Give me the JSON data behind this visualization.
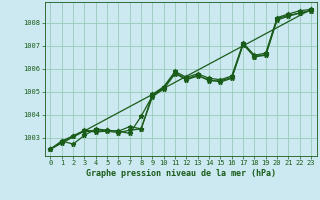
{
  "title": "Graphe pression niveau de la mer (hPa)",
  "background_color": "#cce8f0",
  "grid_color": "#99ccbb",
  "line_color": "#1a5c1a",
  "xlim": [
    -0.5,
    23.5
  ],
  "ylim": [
    1002.2,
    1008.9
  ],
  "xticks": [
    0,
    1,
    2,
    3,
    4,
    5,
    6,
    7,
    8,
    9,
    10,
    11,
    12,
    13,
    14,
    15,
    16,
    17,
    18,
    19,
    20,
    21,
    22,
    23
  ],
  "yticks": [
    1003,
    1004,
    1005,
    1006,
    1007,
    1008
  ],
  "series_main_x": [
    0,
    1,
    2,
    3,
    4,
    5,
    6,
    7,
    8,
    9,
    10,
    11,
    12,
    13,
    14,
    15,
    16,
    17,
    18,
    19,
    20,
    21,
    22,
    23
  ],
  "series_main_y": [
    1002.5,
    1002.85,
    1002.72,
    1003.1,
    1003.38,
    1003.32,
    1003.28,
    1003.18,
    1003.93,
    1004.82,
    1005.18,
    1005.82,
    1005.55,
    1005.72,
    1005.47,
    1005.47,
    1005.62,
    1007.08,
    1006.52,
    1006.62,
    1008.18,
    1008.32,
    1008.42,
    1008.52
  ],
  "series2_x": [
    0,
    1,
    2,
    3,
    4,
    5,
    6,
    7,
    8,
    9,
    10,
    11,
    12,
    13,
    14,
    15,
    16,
    17,
    18,
    19,
    20,
    21,
    22,
    23
  ],
  "series2_y": [
    1002.5,
    1002.85,
    1003.08,
    1003.32,
    1003.28,
    1003.32,
    1003.28,
    1003.48,
    1003.38,
    1004.88,
    1005.22,
    1005.88,
    1005.62,
    1005.78,
    1005.58,
    1005.52,
    1005.68,
    1007.12,
    1006.58,
    1006.68,
    1008.22,
    1008.38,
    1008.52,
    1008.58
  ],
  "straight_line_x": [
    0,
    23
  ],
  "straight_line_y": [
    1002.5,
    1008.58
  ],
  "series3_x": [
    0,
    1,
    2,
    3,
    4,
    5,
    6,
    7,
    8,
    9,
    10,
    11,
    12,
    13,
    14,
    15,
    16,
    17,
    18,
    19,
    20,
    21,
    22,
    23
  ],
  "series3_y": [
    1002.5,
    1002.78,
    1003.05,
    1003.28,
    1003.25,
    1003.28,
    1003.22,
    1003.32,
    1003.38,
    1004.78,
    1005.12,
    1005.78,
    1005.52,
    1005.68,
    1005.52,
    1005.42,
    1005.58,
    1007.05,
    1006.52,
    1006.58,
    1008.12,
    1008.28,
    1008.42,
    1008.52
  ],
  "marker": "*",
  "markersize": 3.5,
  "linewidth": 0.9,
  "title_fontsize": 6.0,
  "tick_fontsize": 5.0
}
